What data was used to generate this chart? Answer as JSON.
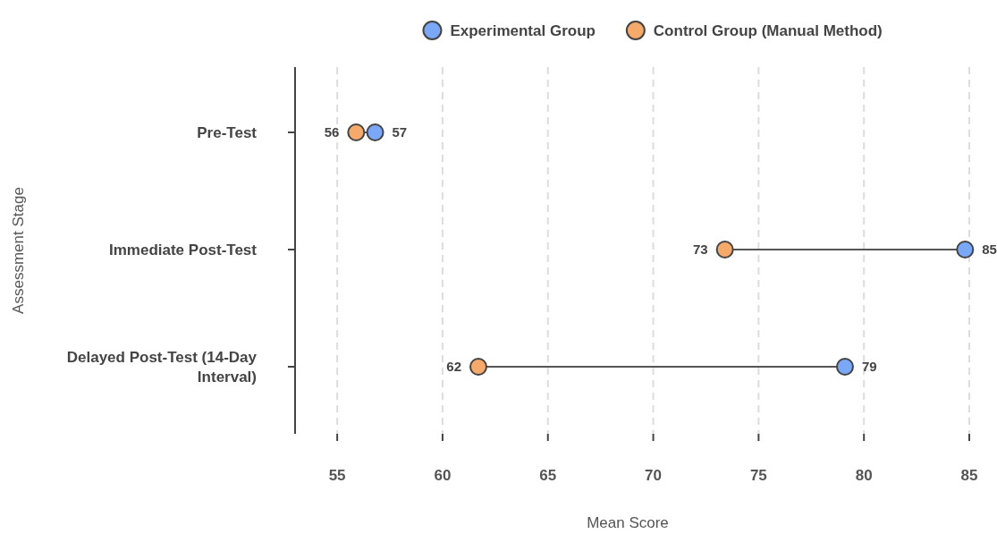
{
  "chart_data": {
    "type": "scatter",
    "orientation": "horizontal",
    "xlabel": "Mean Score",
    "ylabel": "Assessment Stage",
    "categories": [
      "Pre-Test",
      "Immediate Post-Test",
      "Delayed Post-Test (14-Day Interval)"
    ],
    "series": [
      {
        "name": "Experimental Group",
        "color": "#7ba7f7",
        "values": [
          56.8,
          84.8,
          79.1
        ],
        "value_labels": [
          "57",
          "85",
          "79"
        ]
      },
      {
        "name": "Control Group (Manual Method)",
        "color": "#f5a96a",
        "values": [
          55.9,
          73.4,
          61.7
        ],
        "value_labels": [
          "56",
          "73",
          "62"
        ]
      }
    ],
    "xlim": [
      53,
      85
    ],
    "xticks": [
      55,
      60,
      65,
      70,
      75,
      80,
      85
    ],
    "grid": "x",
    "legend": "top",
    "marker": "circle"
  }
}
